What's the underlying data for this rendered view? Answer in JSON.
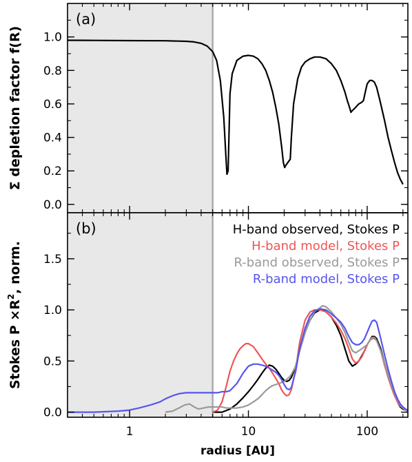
{
  "chart_data": [
    {
      "panel_label": "(a)",
      "type": "line",
      "xscale": "log",
      "xlim": [
        0.3,
        220
      ],
      "ylim": [
        -0.05,
        1.2
      ],
      "ylabel": "Σ depletion factor f(R)",
      "ytick_labels": [
        "0.0",
        "0.2",
        "0.4",
        "0.6",
        "0.8",
        "1.0"
      ],
      "yticks": [
        0.0,
        0.2,
        0.4,
        0.6,
        0.8,
        1.0
      ],
      "shaded_region": [
        0.3,
        5.0
      ],
      "shade_color": "#e8e8e8",
      "divider_color": "#aaaaaa",
      "series": [
        {
          "color": "#000000",
          "x": [
            0.3,
            0.5,
            1,
            2,
            3,
            3.5,
            4,
            4.5,
            5,
            5.4,
            5.8,
            6.2,
            6.45,
            6.6,
            6.75,
            7.0,
            7.3,
            8,
            9,
            10,
            11,
            12,
            13,
            14,
            15,
            16,
            17,
            18,
            19,
            19.7,
            20.2,
            20.5,
            22.5,
            23,
            24,
            26,
            28,
            30,
            33,
            36,
            40,
            45,
            50,
            55,
            60,
            65,
            68,
            71,
            73,
            75,
            80,
            85,
            90,
            93,
            95,
            97,
            98.5,
            100,
            105,
            110,
            115,
            120,
            125,
            130,
            140,
            150,
            160,
            170,
            180,
            190,
            200
          ],
          "y": [
            0.98,
            0.979,
            0.978,
            0.977,
            0.974,
            0.97,
            0.962,
            0.945,
            0.912,
            0.86,
            0.74,
            0.52,
            0.3,
            0.18,
            0.2,
            0.66,
            0.78,
            0.86,
            0.885,
            0.89,
            0.885,
            0.87,
            0.84,
            0.8,
            0.74,
            0.67,
            0.58,
            0.48,
            0.35,
            0.25,
            0.22,
            0.23,
            0.27,
            0.4,
            0.6,
            0.75,
            0.82,
            0.85,
            0.87,
            0.88,
            0.88,
            0.87,
            0.84,
            0.8,
            0.74,
            0.67,
            0.62,
            0.58,
            0.55,
            0.56,
            0.58,
            0.6,
            0.61,
            0.62,
            0.65,
            0.68,
            0.7,
            0.72,
            0.74,
            0.74,
            0.73,
            0.7,
            0.65,
            0.6,
            0.5,
            0.4,
            0.32,
            0.25,
            0.19,
            0.15,
            0.12
          ]
        }
      ]
    },
    {
      "panel_label": "(b)",
      "type": "line",
      "xscale": "log",
      "xlim": [
        0.3,
        220
      ],
      "ylim": [
        -0.05,
        1.95
      ],
      "xlabel": "radius [AU]",
      "ylabel_prefix": "Stokes P ×R",
      "ylabel_sup": "2",
      "ylabel_suffix": ", norm.",
      "ytick_labels": [
        "0.0",
        "0.5",
        "1.0",
        "1.5"
      ],
      "yticks": [
        0.0,
        0.5,
        1.0,
        1.5
      ],
      "xtick_labels": [
        "1",
        "10",
        "100"
      ],
      "xticks": [
        1,
        10,
        100
      ],
      "shaded_region": [
        0.3,
        5.0
      ],
      "legend_position": "top-right",
      "series": [
        {
          "name": "H-band observed, Stokes P",
          "color": "#000000",
          "x": [
            5,
            6,
            7,
            8,
            9,
            10,
            11,
            12,
            13,
            14,
            15,
            16,
            17,
            18,
            19,
            20,
            21,
            22,
            23,
            25,
            27,
            30,
            33,
            36,
            40,
            42,
            45,
            50,
            55,
            60,
            65,
            70,
            75,
            80,
            85,
            90,
            95,
            100,
            105,
            110,
            115,
            120,
            130,
            140,
            150,
            160,
            170,
            180,
            190,
            200,
            210,
            220
          ],
          "y": [
            0.0,
            0.0,
            0.03,
            0.08,
            0.14,
            0.2,
            0.26,
            0.32,
            0.38,
            0.43,
            0.46,
            0.45,
            0.42,
            0.38,
            0.34,
            0.31,
            0.3,
            0.31,
            0.34,
            0.45,
            0.6,
            0.78,
            0.9,
            0.97,
            1.0,
            1.0,
            0.98,
            0.93,
            0.85,
            0.75,
            0.62,
            0.5,
            0.45,
            0.47,
            0.5,
            0.55,
            0.6,
            0.66,
            0.7,
            0.74,
            0.74,
            0.72,
            0.62,
            0.48,
            0.36,
            0.26,
            0.18,
            0.1,
            0.05,
            0.03,
            0.02,
            0.01
          ]
        },
        {
          "name": "H-band model, Stokes P",
          "color": "#ee5555",
          "x": [
            5,
            5.5,
            6,
            6.5,
            7,
            7.5,
            8,
            8.5,
            9,
            9.5,
            10,
            11,
            12,
            13,
            14,
            15,
            16,
            17,
            18,
            19,
            20,
            21,
            22,
            23,
            25,
            27,
            30,
            33,
            36,
            40,
            45,
            50,
            55,
            60,
            65,
            70,
            75,
            80,
            85,
            90,
            95,
            100,
            105,
            110,
            115,
            120,
            130,
            140,
            150,
            160,
            170,
            180,
            190,
            200,
            210,
            220
          ],
          "y": [
            0.0,
            0.02,
            0.1,
            0.25,
            0.4,
            0.5,
            0.57,
            0.62,
            0.65,
            0.67,
            0.67,
            0.64,
            0.58,
            0.52,
            0.47,
            0.43,
            0.38,
            0.33,
            0.28,
            0.22,
            0.18,
            0.16,
            0.17,
            0.22,
            0.42,
            0.68,
            0.9,
            0.98,
            1.0,
            1.0,
            0.98,
            0.93,
            0.87,
            0.8,
            0.72,
            0.62,
            0.52,
            0.48,
            0.5,
            0.54,
            0.6,
            0.66,
            0.7,
            0.72,
            0.72,
            0.7,
            0.6,
            0.46,
            0.34,
            0.24,
            0.16,
            0.1,
            0.06,
            0.04,
            0.02,
            0.01
          ]
        },
        {
          "name": "R-band observed, Stokes P",
          "color": "#999999",
          "x": [
            2,
            2.3,
            2.6,
            2.9,
            3.2,
            3.5,
            3.8,
            4.2,
            4.6,
            5,
            5.5,
            6,
            6.5,
            7,
            8,
            9,
            10,
            11,
            12,
            13,
            14,
            15,
            16,
            17,
            18,
            19,
            20,
            21,
            22,
            23,
            25,
            27,
            30,
            33,
            36,
            40,
            42,
            45,
            48,
            50,
            55,
            60,
            65,
            70,
            75,
            80,
            85,
            90,
            95,
            100,
            105,
            110,
            115,
            120,
            130,
            140,
            150,
            160,
            170,
            180,
            190,
            200,
            210,
            220
          ],
          "y": [
            0.0,
            0.01,
            0.04,
            0.07,
            0.08,
            0.05,
            0.03,
            0.04,
            0.05,
            0.05,
            0.05,
            0.05,
            0.04,
            0.04,
            0.04,
            0.05,
            0.07,
            0.1,
            0.13,
            0.17,
            0.21,
            0.24,
            0.26,
            0.27,
            0.28,
            0.29,
            0.3,
            0.32,
            0.34,
            0.37,
            0.45,
            0.6,
            0.78,
            0.9,
            0.98,
            1.02,
            1.04,
            1.03,
            1.0,
            0.98,
            0.92,
            0.86,
            0.78,
            0.68,
            0.6,
            0.58,
            0.6,
            0.62,
            0.64,
            0.66,
            0.7,
            0.73,
            0.73,
            0.7,
            0.6,
            0.48,
            0.36,
            0.26,
            0.18,
            0.12,
            0.07,
            0.04,
            0.02,
            0.01
          ]
        },
        {
          "name": "R-band model, Stokes P",
          "color": "#5555ee",
          "x": [
            0.3,
            0.5,
            0.8,
            1.0,
            1.2,
            1.5,
            1.8,
            2.0,
            2.3,
            2.6,
            3.0,
            3.5,
            4.0,
            4.5,
            5,
            5.5,
            6,
            6.5,
            7,
            8,
            9,
            10,
            11,
            12,
            13,
            14,
            15,
            16,
            17,
            18,
            19,
            20,
            21,
            22,
            23,
            25,
            27,
            30,
            33,
            36,
            40,
            45,
            50,
            55,
            60,
            65,
            70,
            75,
            80,
            85,
            90,
            95,
            100,
            105,
            110,
            115,
            120,
            125,
            130,
            140,
            150,
            160,
            170,
            180,
            190,
            200,
            210,
            220
          ],
          "y": [
            0.0,
            0.0,
            0.01,
            0.02,
            0.04,
            0.07,
            0.1,
            0.13,
            0.16,
            0.18,
            0.19,
            0.19,
            0.19,
            0.19,
            0.19,
            0.19,
            0.2,
            0.2,
            0.21,
            0.28,
            0.38,
            0.45,
            0.47,
            0.47,
            0.46,
            0.45,
            0.43,
            0.41,
            0.39,
            0.36,
            0.32,
            0.27,
            0.23,
            0.22,
            0.24,
            0.4,
            0.62,
            0.82,
            0.94,
            0.99,
            1.01,
            1.0,
            0.96,
            0.92,
            0.88,
            0.82,
            0.74,
            0.68,
            0.66,
            0.66,
            0.68,
            0.72,
            0.78,
            0.84,
            0.89,
            0.9,
            0.88,
            0.8,
            0.72,
            0.56,
            0.42,
            0.3,
            0.2,
            0.13,
            0.08,
            0.05,
            0.03,
            0.02
          ]
        }
      ]
    }
  ]
}
